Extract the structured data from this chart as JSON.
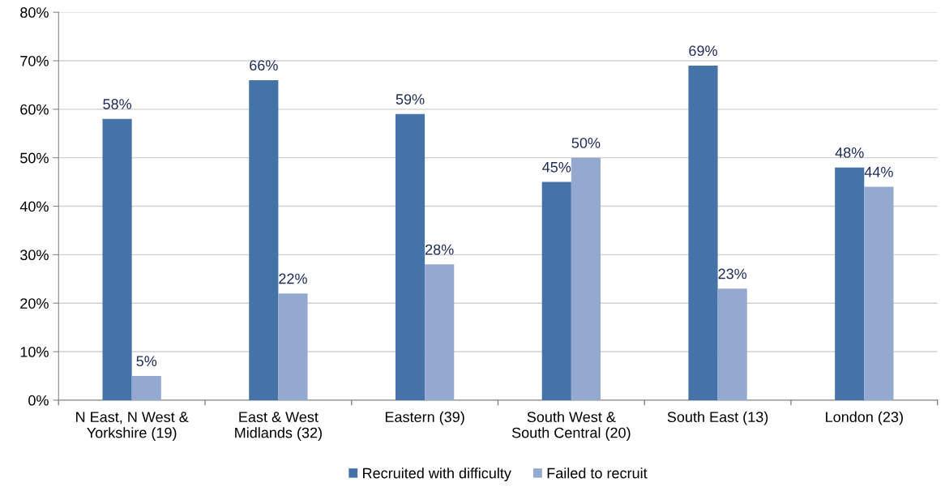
{
  "chart_data": {
    "type": "bar",
    "categories": [
      "N East, N West &\nYorkshire (19)",
      "East & West\nMidlands (32)",
      "Eastern (39)",
      "South West &\nSouth Central (20)",
      "South East (13)",
      "London (23)"
    ],
    "series": [
      {
        "name": "Recruited with difficulty",
        "color": "#4572a7",
        "values": [
          58,
          66,
          59,
          45,
          69,
          48
        ],
        "value_labels": [
          "58%",
          "66%",
          "59%",
          "45%",
          "69%",
          "48%"
        ]
      },
      {
        "name": "Failed to recruit",
        "color": "#94a9d0",
        "values": [
          5,
          22,
          28,
          50,
          23,
          44
        ],
        "value_labels": [
          "5%",
          "22%",
          "28%",
          "50%",
          "23%",
          "44%"
        ]
      }
    ],
    "ylim": [
      0,
      80
    ],
    "yticks": [
      {
        "value": 0,
        "label": "0%"
      },
      {
        "value": 10,
        "label": "10%"
      },
      {
        "value": 20,
        "label": "20%"
      },
      {
        "value": 30,
        "label": "30%"
      },
      {
        "value": 40,
        "label": "40%"
      },
      {
        "value": 50,
        "label": "50%"
      },
      {
        "value": 60,
        "label": "60%"
      },
      {
        "value": 70,
        "label": "70%"
      },
      {
        "value": 80,
        "label": "80%"
      }
    ],
    "grid": "y",
    "legend": "bottom"
  }
}
